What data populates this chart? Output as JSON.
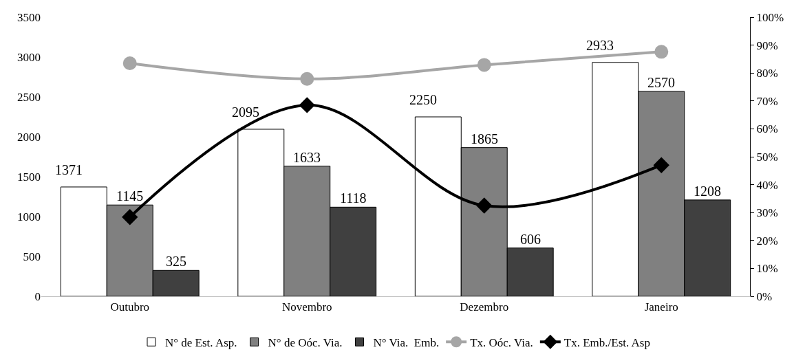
{
  "chart_data": {
    "type": "bar",
    "categories": [
      "Outubro",
      "Novembro",
      "Dezembro",
      "Janeiro"
    ],
    "series": [
      {
        "name": "N° de Est. Asp.",
        "color": "#ffffff",
        "values": [
          1371,
          2095,
          2250,
          2933
        ],
        "value_labels": [
          "1371",
          "2095",
          "2250",
          "2933"
        ]
      },
      {
        "name": "N° de Oóc. Via.",
        "color": "#808080",
        "values": [
          1145,
          1633,
          1865,
          2570
        ],
        "value_labels": [
          "1145",
          "1633",
          "1865",
          "2570"
        ]
      },
      {
        "name": "N° Via.  Emb.",
        "color": "#404040",
        "values": [
          325,
          1118,
          606,
          1208
        ],
        "value_labels": [
          "325",
          "1118",
          "606",
          "1208"
        ]
      },
      {
        "name": "Tx. Oóc. Via.",
        "type": "line",
        "axis": "y2",
        "marker": "circle",
        "color": "#a6a6a6",
        "values": [
          83.5,
          77.9,
          82.9,
          87.6
        ]
      },
      {
        "name": "Tx. Emb./Est. Asp",
        "type": "line",
        "axis": "y2",
        "marker": "diamond",
        "color": "#000000",
        "values": [
          28.4,
          68.5,
          32.5,
          47.0
        ]
      }
    ],
    "ylim": [
      0,
      3500
    ],
    "yticks": [
      0,
      500,
      1000,
      1500,
      2000,
      2500,
      3000,
      3500
    ],
    "y2lim": [
      0,
      100
    ],
    "y2ticks": [
      {
        "value": 0,
        "label": "0%"
      },
      {
        "value": 10,
        "label": "10%"
      },
      {
        "value": 20,
        "label": "20%"
      },
      {
        "value": 30,
        "label": "30%"
      },
      {
        "value": 40,
        "label": "40%"
      },
      {
        "value": 50,
        "label": "50%"
      },
      {
        "value": 60,
        "label": "60%"
      },
      {
        "value": 70,
        "label": "70%"
      },
      {
        "value": 80,
        "label": "80%"
      },
      {
        "value": 90,
        "label": "90%"
      },
      {
        "value": 100,
        "label": "100%"
      }
    ],
    "grid": false,
    "legend": "bottom",
    "line_style": "solid"
  }
}
